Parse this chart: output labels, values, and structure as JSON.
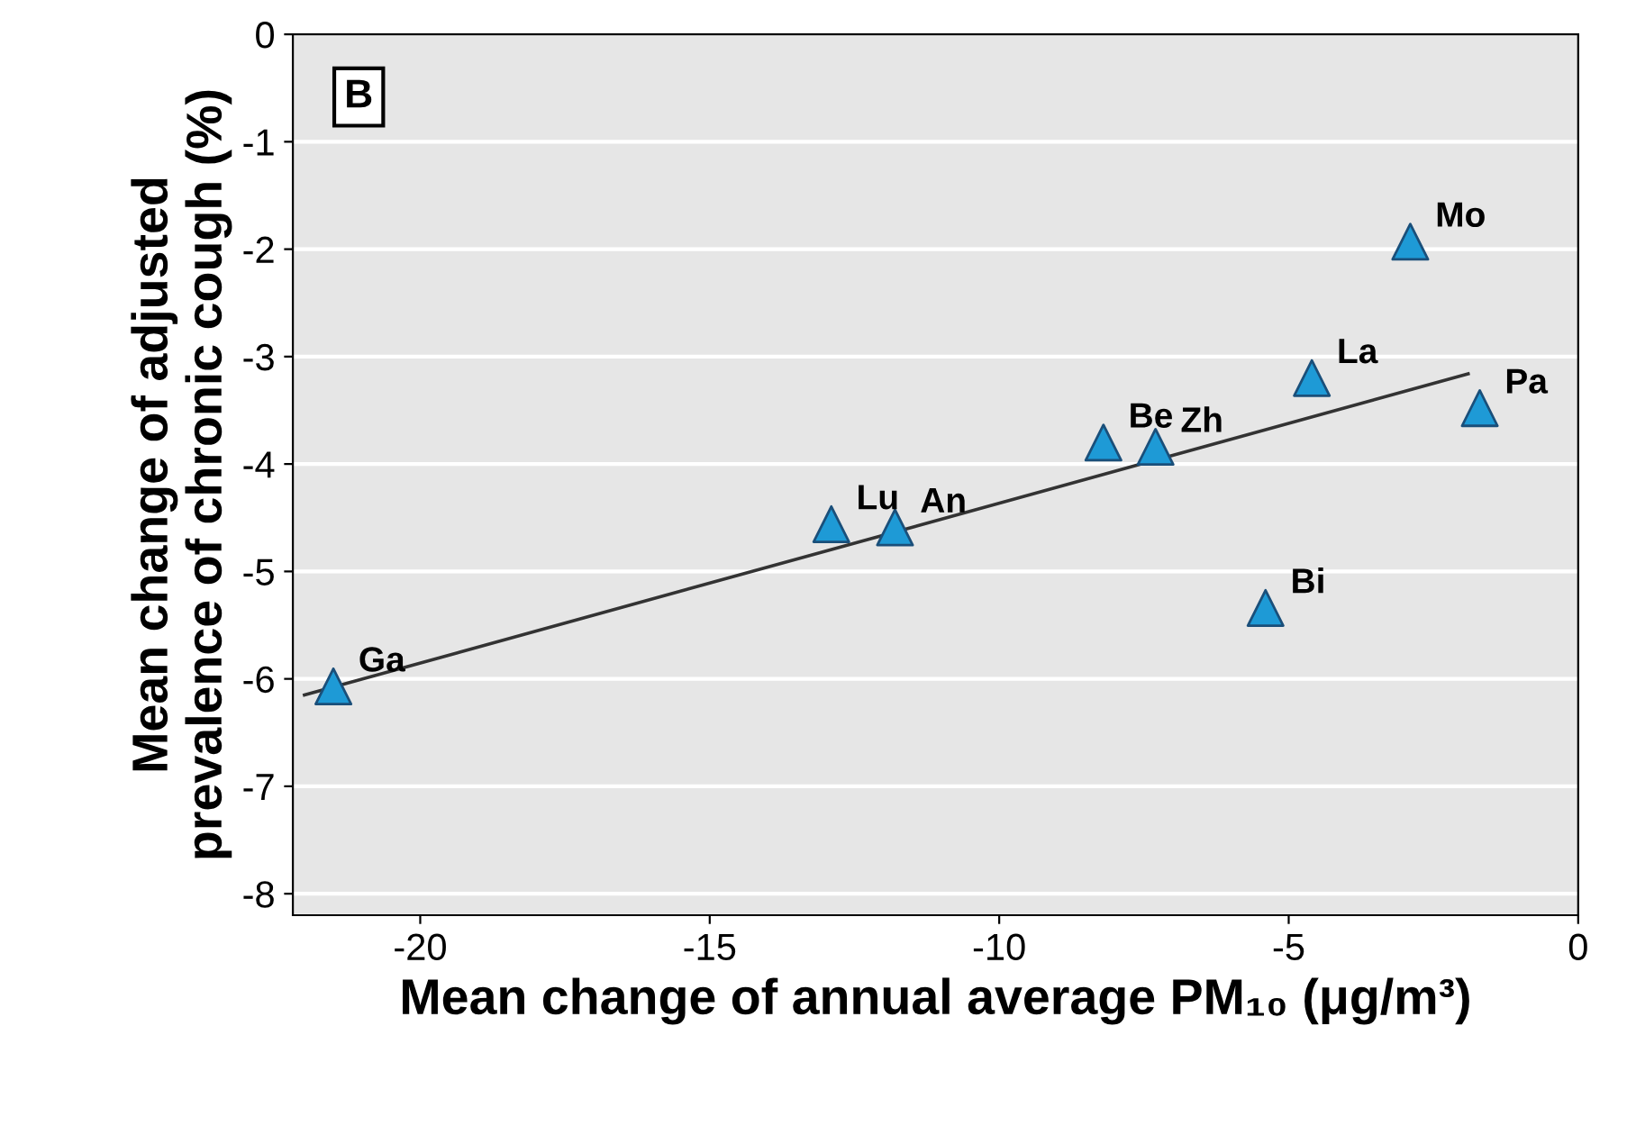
{
  "chart_data": {
    "type": "scatter",
    "xlabel": "Mean change of annual average PM₁₀ (μg/m³)",
    "ylabel": "Mean change of adjusted\nprevalence of chronic cough (%)",
    "series": [
      {
        "color": "#1e9ad6",
        "marker": "triangle",
        "x": [
          -21.5,
          -12.9,
          -11.8,
          -8.2,
          -7.3,
          -4.6,
          -2.9,
          -1.7,
          -5.4
        ],
        "values": [
          -6.07,
          -4.56,
          -4.59,
          -3.8,
          -3.84,
          -3.2,
          -1.93,
          -3.48,
          -5.34
        ]
      },
      {
        "type": "line",
        "color": "#333333",
        "marker": "none",
        "x": [
          -22,
          -1.9
        ],
        "values": [
          -6.15,
          -3.16
        ]
      }
    ],
    "annotations": [
      "B",
      {
        "text": "Ga",
        "x": -21.5,
        "y": -6.07
      },
      {
        "text": "Lu",
        "x": -12.9,
        "y": -4.56
      },
      {
        "text": "An",
        "x": -11.8,
        "y": -4.59
      },
      {
        "text": "Be",
        "x": -8.2,
        "y": -3.8
      },
      {
        "text": "Zh",
        "x": -7.3,
        "y": -3.84
      },
      {
        "text": "La",
        "x": -4.6,
        "y": -3.2
      },
      {
        "text": "Mo",
        "x": -2.9,
        "y": -1.93
      },
      {
        "text": "Pa",
        "x": -1.7,
        "y": -3.48
      },
      {
        "text": "Bi",
        "x": -5.4,
        "y": -5.34
      }
    ],
    "xlim": [
      -22.2,
      0
    ],
    "xticks": [
      -20,
      -15,
      -10,
      -5,
      0
    ],
    "ylim": [
      -8.2,
      0
    ],
    "yticks": [
      -8,
      -7,
      -6,
      -5,
      -4,
      -3,
      -2,
      -1,
      0
    ],
    "grid": "y"
  }
}
